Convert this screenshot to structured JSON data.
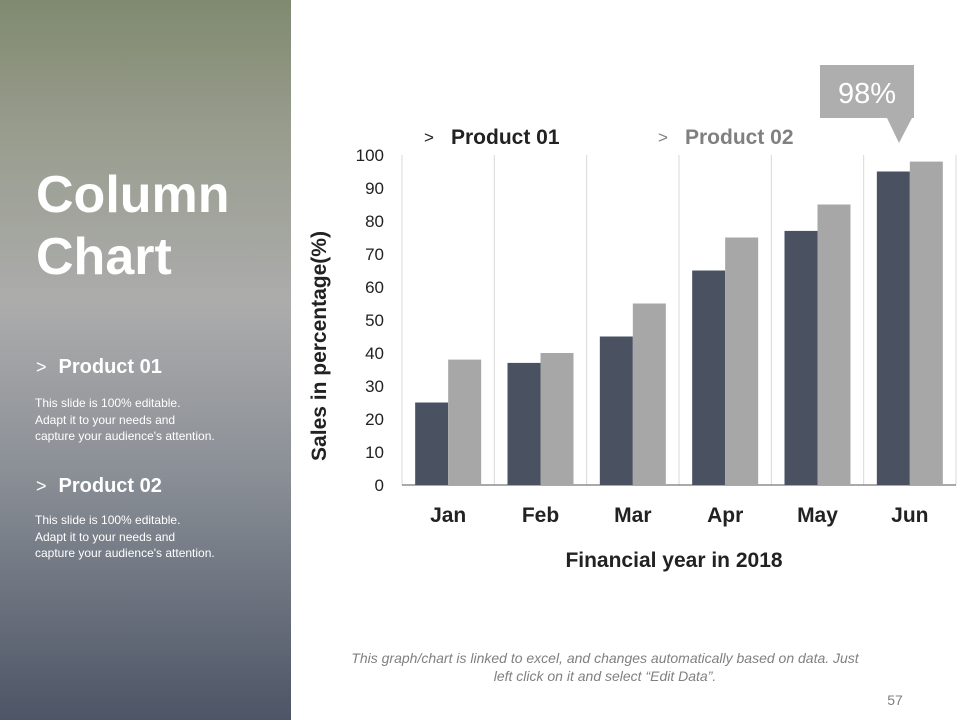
{
  "slide": {
    "title_line1": "Column",
    "title_line2": "Chart",
    "page_number": "57",
    "footnote_line1": "This graph/chart is linked to excel, and changes automatically based on data. Just",
    "footnote_line2": "left click on it and select “Edit Data”."
  },
  "sidebar": {
    "products": [
      {
        "heading": "Product 01",
        "chevron": ">",
        "desc_line1": "This slide is 100% editable.",
        "desc_line2": "Adapt it to your needs and",
        "desc_line3": "capture your audience's attention."
      },
      {
        "heading": "Product 02",
        "chevron": ">",
        "desc_line1": "This slide is 100% editable.",
        "desc_line2": "Adapt it to your needs and",
        "desc_line3": "capture your audience's attention."
      }
    ]
  },
  "chart_data": {
    "type": "bar",
    "categories": [
      "Jan",
      "Feb",
      "Mar",
      "Apr",
      "May",
      "Jun"
    ],
    "series": [
      {
        "name": "Product 01",
        "values": [
          25,
          37,
          45,
          65,
          77,
          95
        ],
        "color": "#4a5160"
      },
      {
        "name": "Product 02",
        "values": [
          38,
          40,
          55,
          75,
          85,
          98
        ],
        "color": "#a7a7a7"
      }
    ],
    "ylim": [
      0,
      100
    ],
    "yticks": [
      0,
      10,
      20,
      30,
      40,
      50,
      60,
      70,
      80,
      90,
      100
    ],
    "xlabel": "Financial year in 2018",
    "ylabel": "Sales in percentage(%)",
    "legend_marker": ">",
    "legend_position": "top",
    "grid": "vertical category separators",
    "callout": {
      "text": "98%",
      "series": "Product 02",
      "category": "Jun",
      "color": "#a7a7a7"
    },
    "colors": {
      "text": "#222222",
      "legend_product02": "#808080",
      "grid": "#d9d9d9",
      "axis": "#555555"
    }
  }
}
